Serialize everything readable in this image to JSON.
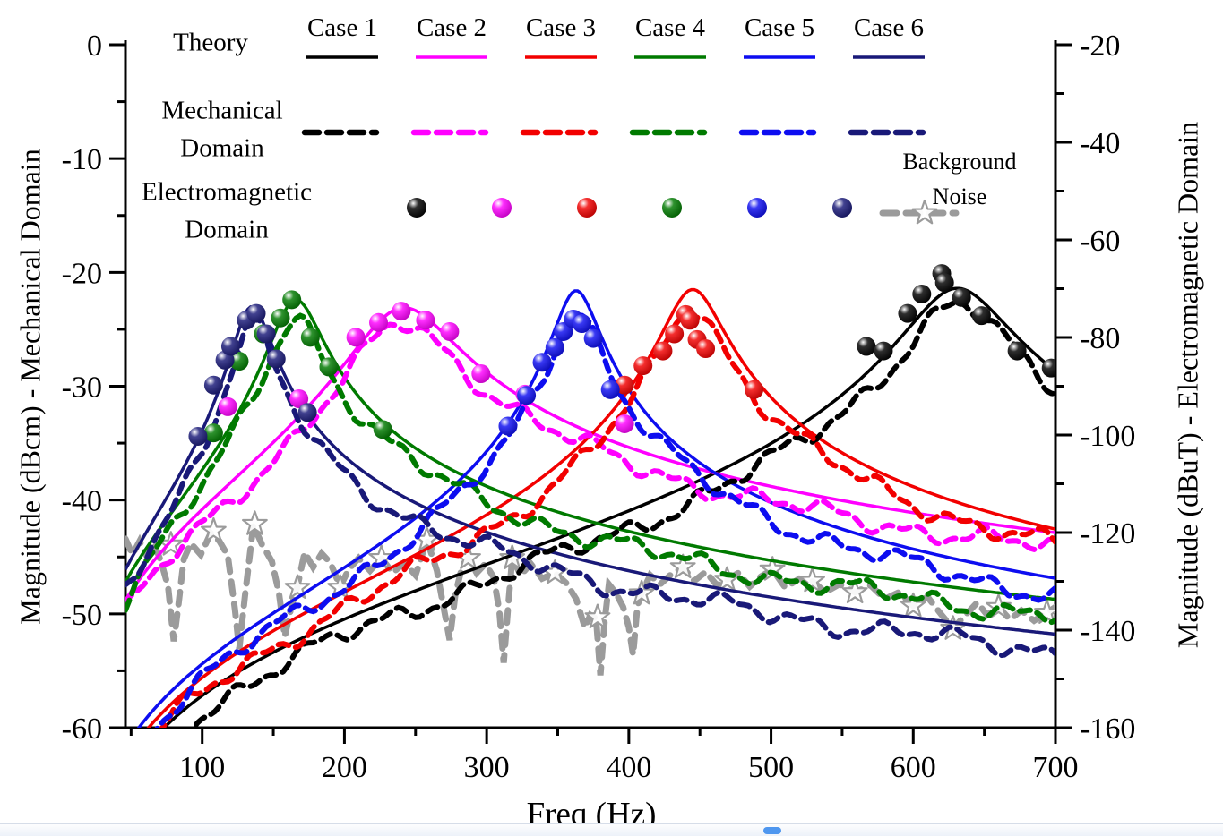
{
  "figure": {
    "x_axis": {
      "label": "Freq (Hz)",
      "range_hz": [
        46,
        700
      ],
      "major_ticks": [
        100,
        200,
        300,
        400,
        500,
        600,
        700
      ],
      "minor_step": 50
    },
    "left_axis": {
      "label": "Magnitude (dBcm) - Mechanical Domain",
      "range_db": [
        0,
        -60
      ],
      "major_ticks": [
        0,
        -10,
        -20,
        -30,
        -40,
        -50,
        -60
      ],
      "minor_step": 5
    },
    "right_axis": {
      "label": "Magnitude (dBuT) - Electromagnetic Domain",
      "range_db": [
        -20,
        -160
      ],
      "major_ticks": [
        -20,
        -40,
        -60,
        -80,
        -100,
        -120,
        -140,
        -160
      ],
      "minor_step": 10
    }
  },
  "legend": {
    "theory_label": "Theory",
    "mechanical_label_line1": "Mechanical",
    "mechanical_label_line2": "Domain",
    "electromagnetic_label_line1": "Electromagnetic",
    "electromagnetic_label_line2": "Domain",
    "background_noise_label_line1": "Background",
    "background_noise_label_line2": "Noise",
    "cases": [
      {
        "label": "Case 1",
        "color": "#000000"
      },
      {
        "label": "Case 2",
        "color": "#FF00FF"
      },
      {
        "label": "Case 3",
        "color": "#F20000"
      },
      {
        "label": "Case 4",
        "color": "#007A00"
      },
      {
        "label": "Case 5",
        "color": "#0D0DF0"
      },
      {
        "label": "Case 6",
        "color": "#191978"
      }
    ]
  },
  "chart_data": {
    "type": "line",
    "title": "",
    "xlabel": "Freq (Hz)",
    "x_range_hz": [
      46,
      700
    ],
    "left_ylabel": "Magnitude (dBcm) - Mechanical Domain",
    "left_ylim": [
      0,
      -60
    ],
    "right_ylabel": "Magnitude (dBuT) - Electromagnetic Domain",
    "right_ylim": [
      -20,
      -160
    ],
    "grid": false,
    "series": [
      {
        "name": "Case 1",
        "color": "#000000",
        "theory": {
          "resonance_hz": 631,
          "q_factor": 10,
          "peak_db": -21.4
        },
        "mechanical_offset_db": -1.5,
        "electromagnetic_markers_hz_db": [
          [
            567,
            -26.5
          ],
          [
            579,
            -26.9
          ],
          [
            596,
            -23.6
          ],
          [
            606,
            -21.9
          ],
          [
            620,
            -20.1
          ],
          [
            622,
            -20.9
          ],
          [
            634,
            -22.2
          ],
          [
            648,
            -23.8
          ],
          [
            673,
            -26.9
          ],
          [
            697,
            -28.4
          ]
        ]
      },
      {
        "name": "Case 2",
        "color": "#FF00FF",
        "theory": {
          "resonance_hz": 242,
          "q_factor": 3.8,
          "peak_db": -23.1
        },
        "mechanical_offset_db": -1.4,
        "electromagnetic_markers_hz_db": [
          [
            118,
            -31.8
          ],
          [
            168,
            -31.1
          ],
          [
            208,
            -25.7
          ],
          [
            224,
            -24.4
          ],
          [
            240,
            -23.4
          ],
          [
            257,
            -24.2
          ],
          [
            274,
            -25.2
          ],
          [
            296,
            -28.9
          ],
          [
            327,
            -30.7
          ],
          [
            397,
            -33.3
          ]
        ]
      },
      {
        "name": "Case 3",
        "color": "#F20000",
        "theory": {
          "resonance_hz": 445,
          "q_factor": 12,
          "peak_db": -21.5
        },
        "mechanical_offset_db": -1.4,
        "electromagnetic_markers_hz_db": [
          [
            397,
            -29.9
          ],
          [
            410,
            -28.2
          ],
          [
            424,
            -26.9
          ],
          [
            432,
            -25.4
          ],
          [
            440,
            -23.7
          ],
          [
            443,
            -24.2
          ],
          [
            448,
            -25.9
          ],
          [
            454,
            -26.7
          ],
          [
            488,
            -30.3
          ]
        ]
      },
      {
        "name": "Case 4",
        "color": "#007A00",
        "theory": {
          "resonance_hz": 166,
          "q_factor": 5.2,
          "peak_db": -22.4
        },
        "mechanical_offset_db": -1.4,
        "electromagnetic_markers_hz_db": [
          [
            108,
            -34.1
          ],
          [
            126,
            -27.8
          ],
          [
            143,
            -25.4
          ],
          [
            155,
            -24.0
          ],
          [
            163,
            -22.4
          ],
          [
            176,
            -25.7
          ],
          [
            189,
            -28.3
          ],
          [
            227,
            -33.8
          ]
        ]
      },
      {
        "name": "Case 5",
        "color": "#0D0DF0",
        "theory": {
          "resonance_hz": 363,
          "q_factor": 13,
          "peak_db": -21.6
        },
        "mechanical_offset_db": -1.4,
        "electromagnetic_markers_hz_db": [
          [
            315,
            -33.5
          ],
          [
            328,
            -30.8
          ],
          [
            339,
            -27.9
          ],
          [
            348,
            -26.6
          ],
          [
            354,
            -25.2
          ],
          [
            361,
            -24.1
          ],
          [
            367,
            -24.5
          ],
          [
            375,
            -25.8
          ],
          [
            387,
            -30.3
          ]
        ]
      },
      {
        "name": "Case 6",
        "color": "#191978",
        "theory": {
          "resonance_hz": 135,
          "q_factor": 5.5,
          "peak_db": -23.0
        },
        "mechanical_offset_db": -1.5,
        "electromagnetic_markers_hz_db": [
          [
            97,
            -34.4
          ],
          [
            108,
            -29.9
          ],
          [
            116,
            -27.7
          ],
          [
            120,
            -26.5
          ],
          [
            131,
            -24.2
          ],
          [
            138,
            -23.6
          ],
          [
            145,
            -25.4
          ],
          [
            152,
            -27.6
          ],
          [
            174,
            -32.3
          ]
        ]
      }
    ],
    "background_noise": {
      "name": "Background Noise",
      "color": "#9B9B9B",
      "points_hz_db": [
        [
          46,
          -43.4
        ],
        [
          51,
          -44.8
        ],
        [
          56,
          -43.6
        ],
        [
          61,
          -44.9
        ],
        [
          66,
          -43.8
        ],
        [
          71,
          -45.4
        ],
        [
          76,
          -47.6
        ],
        [
          80,
          -52.4
        ],
        [
          83,
          -49.5
        ],
        [
          87,
          -45.2
        ],
        [
          92,
          -43.8
        ],
        [
          99,
          -44.8
        ],
        [
          106,
          -42.9
        ],
        [
          112,
          -43.6
        ],
        [
          118,
          -44.9
        ],
        [
          123,
          -49.6
        ],
        [
          126,
          -53.1
        ],
        [
          130,
          -48.5
        ],
        [
          136,
          -42.2
        ],
        [
          142,
          -43.9
        ],
        [
          149,
          -45.4
        ],
        [
          154,
          -48.2
        ],
        [
          158,
          -52.0
        ],
        [
          163,
          -49.2
        ],
        [
          167,
          -47.6
        ],
        [
          172,
          -44.6
        ],
        [
          178,
          -45.9
        ],
        [
          184,
          -44.7
        ],
        [
          190,
          -45.5
        ],
        [
          197,
          -47.6
        ],
        [
          203,
          -46.1
        ],
        [
          210,
          -45.1
        ],
        [
          218,
          -46.2
        ],
        [
          226,
          -45.1
        ],
        [
          234,
          -46.4
        ],
        [
          242,
          -45.5
        ],
        [
          250,
          -46.6
        ],
        [
          258,
          -43.5
        ],
        [
          265,
          -46.2
        ],
        [
          270,
          -49.6
        ],
        [
          274,
          -52.3
        ],
        [
          278,
          -48.3
        ],
        [
          283,
          -45.7
        ],
        [
          287,
          -45.1
        ],
        [
          293,
          -46.4
        ],
        [
          299,
          -45.6
        ],
        [
          305,
          -46.8
        ],
        [
          309,
          -49.8
        ],
        [
          312,
          -54.3
        ],
        [
          315,
          -49.6
        ],
        [
          318,
          -45.1
        ],
        [
          324,
          -46.6
        ],
        [
          331,
          -45.6
        ],
        [
          339,
          -46.9
        ],
        [
          348,
          -46.4
        ],
        [
          356,
          -47.3
        ],
        [
          363,
          -48.7
        ],
        [
          369,
          -51.2
        ],
        [
          373,
          -50.1
        ],
        [
          377,
          -50.4
        ],
        [
          380,
          -55.4
        ],
        [
          383,
          -50.6
        ],
        [
          386,
          -47.4
        ],
        [
          391,
          -48.2
        ],
        [
          396,
          -49.4
        ],
        [
          400,
          -51.2
        ],
        [
          403,
          -53.6
        ],
        [
          406,
          -49.3
        ],
        [
          409,
          -48.2
        ],
        [
          415,
          -46.6
        ],
        [
          422,
          -47.4
        ],
        [
          430,
          -46.5
        ],
        [
          438,
          -45.9
        ],
        [
          446,
          -47.1
        ],
        [
          454,
          -46.3
        ],
        [
          462,
          -47.5
        ],
        [
          469,
          -47.0
        ],
        [
          477,
          -46.4
        ],
        [
          485,
          -47.6
        ],
        [
          493,
          -46.7
        ],
        [
          501,
          -46.1
        ],
        [
          510,
          -47.7
        ],
        [
          520,
          -46.9
        ],
        [
          529,
          -47.1
        ],
        [
          538,
          -48.1
        ],
        [
          548,
          -47.4
        ],
        [
          559,
          -48.1
        ],
        [
          570,
          -47.5
        ],
        [
          580,
          -48.7
        ],
        [
          590,
          -48.1
        ],
        [
          600,
          -49.3
        ],
        [
          610,
          -48.5
        ],
        [
          620,
          -50.1
        ],
        [
          628,
          -51.3
        ],
        [
          636,
          -50.2
        ],
        [
          645,
          -49.0
        ],
        [
          652,
          -50.1
        ],
        [
          660,
          -49.4
        ],
        [
          668,
          -50.5
        ],
        [
          676,
          -49.7
        ],
        [
          685,
          -50.6
        ],
        [
          694,
          -49.9
        ],
        [
          700,
          -49.4
        ]
      ],
      "stars_hz_db": [
        [
          78,
          -43.9
        ],
        [
          108,
          -42.7
        ],
        [
          137,
          -42.1
        ],
        [
          167,
          -47.7
        ],
        [
          197,
          -47.7
        ],
        [
          226,
          -45.1
        ],
        [
          258,
          -43.5
        ],
        [
          287,
          -45.1
        ],
        [
          318,
          -45.1
        ],
        [
          348,
          -46.4
        ],
        [
          378,
          -50.3
        ],
        [
          409,
          -48.2
        ],
        [
          438,
          -45.9
        ],
        [
          469,
          -47.0
        ],
        [
          501,
          -46.1
        ],
        [
          529,
          -47.1
        ],
        [
          559,
          -48.1
        ],
        [
          600,
          -49.3
        ],
        [
          628,
          -51.3
        ],
        [
          660,
          -49.4
        ],
        [
          694,
          -49.9
        ]
      ]
    }
  }
}
